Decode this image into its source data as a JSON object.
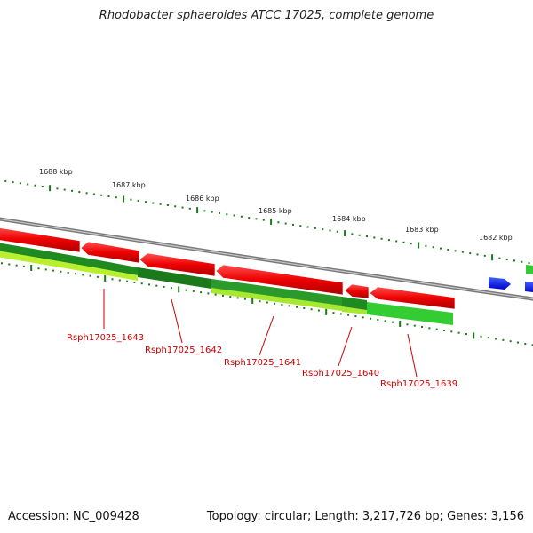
{
  "title": "Rhodobacter sphaeroides ATCC 17025, complete genome",
  "footer": {
    "accession": "Accession: NC_009428",
    "topology": "Topology: circular; Length: 3,217,726 bp; Genes: 3,156"
  },
  "colors": {
    "backbone": "#888888",
    "forward_gene": "#ee0000",
    "reverse_gene": "#0000ee",
    "green_dark": "#1f8a1f",
    "green_light": "#33cc33",
    "green_yellow": "#b8f030",
    "tick": "#1a7a1a",
    "label": "#cc0000"
  },
  "kbp_labels": [
    "1688 kbp",
    "1687 kbp",
    "1686 kbp",
    "1685 kbp",
    "1684 kbp",
    "1683 kbp",
    "1682 kbp"
  ],
  "gene_labels": [
    "Rsph17025_1643",
    "Rsph17025_1642",
    "Rsph17025_1641",
    "Rsph17025_1640",
    "Rsph17025_1639"
  ]
}
